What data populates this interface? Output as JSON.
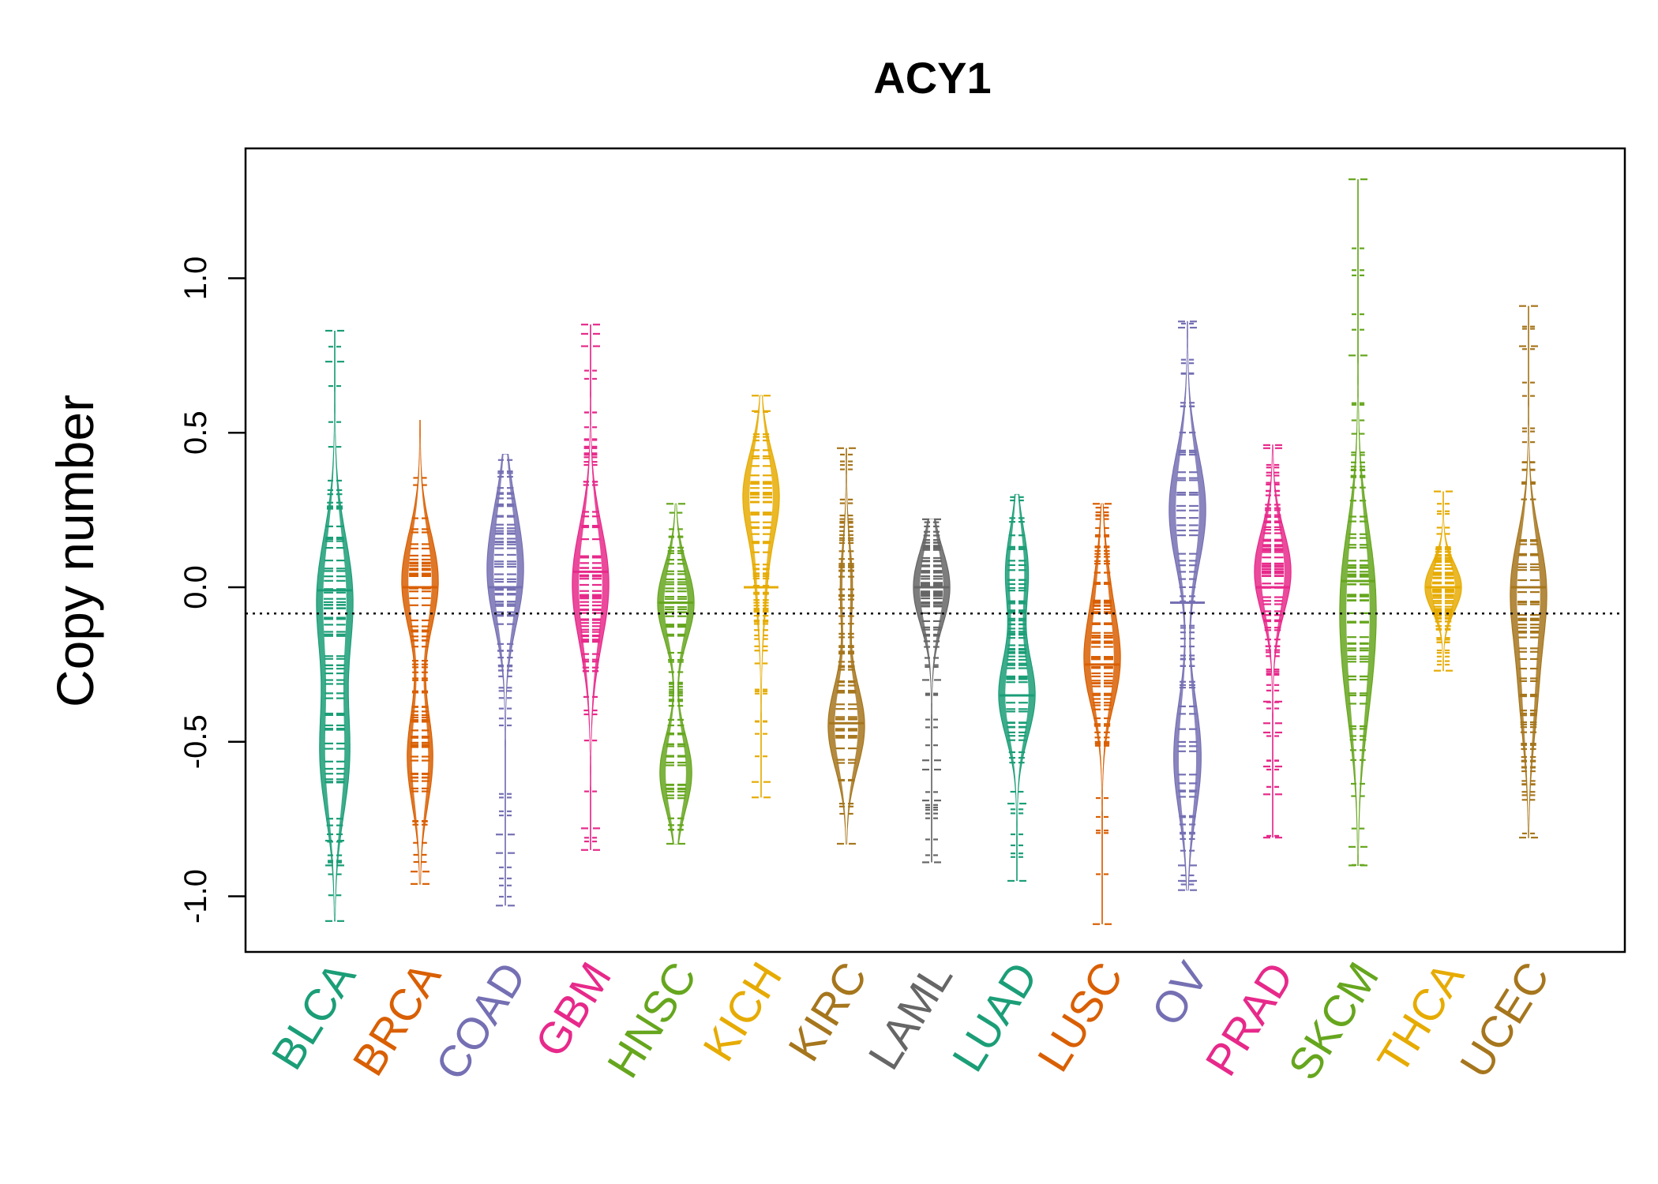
{
  "chart_data": {
    "type": "beanplot",
    "title": "ACY1",
    "xlabel": "",
    "ylabel": "Copy number",
    "ylim": [
      -1.18,
      1.42
    ],
    "yticks": [
      -1.0,
      -0.5,
      0.0,
      0.5,
      1.0
    ],
    "ytick_labels": [
      "-1.0",
      "-0.5",
      "0.0",
      "0.5",
      "1.0"
    ],
    "reference_line": -0.085,
    "reference_line_style": "dotted",
    "categories": [
      "BLCA",
      "BRCA",
      "COAD",
      "GBM",
      "HNSC",
      "KICH",
      "KIRC",
      "LAML",
      "LUAD",
      "LUSC",
      "OV",
      "PRAD",
      "SKCM",
      "THCA",
      "UCEC"
    ],
    "colors": [
      "#1B9E77",
      "#D95F02",
      "#7570B3",
      "#E7298A",
      "#66A61E",
      "#E6AB02",
      "#A6761D",
      "#666666",
      "#1B9E77",
      "#D95F02",
      "#7570B3",
      "#E7298A",
      "#66A61E",
      "#E6AB02",
      "#A6761D"
    ],
    "series": [
      {
        "name": "BLCA",
        "min": -1.08,
        "max": 0.83,
        "median": -0.01,
        "modes": [
          [
            -0.55,
            0.9
          ],
          [
            0.02,
            0.7
          ],
          [
            -0.12,
            0.5
          ]
        ],
        "outliers": [
          0.83,
          0.73,
          -0.82,
          -0.9,
          -1.08
        ]
      },
      {
        "name": "BRCA",
        "min": -0.96,
        "max": 0.54,
        "median": 0.0,
        "modes": [
          [
            0.02,
            1.0
          ],
          [
            -0.55,
            0.7
          ]
        ],
        "outliers": [
          -0.92,
          -0.96
        ]
      },
      {
        "name": "COAD",
        "min": -1.03,
        "max": 0.43,
        "median": 0.0,
        "modes": [
          [
            0.0,
            1.0
          ],
          [
            0.2,
            0.6
          ]
        ],
        "outliers": [
          -0.8,
          -0.86,
          -1.03
        ]
      },
      {
        "name": "GBM",
        "min": -0.85,
        "max": 0.85,
        "median": 0.05,
        "modes": [
          [
            0.05,
            1.0
          ],
          [
            -0.12,
            0.4
          ]
        ],
        "outliers": [
          0.85,
          0.82,
          0.78,
          -0.78,
          -0.85
        ]
      },
      {
        "name": "HNSC",
        "min": -0.83,
        "max": 0.27,
        "median": -0.05,
        "modes": [
          [
            -0.05,
            0.8
          ],
          [
            -0.6,
            0.7
          ]
        ],
        "outliers": [
          0.27,
          -0.83
        ]
      },
      {
        "name": "KICH",
        "min": -0.68,
        "max": 0.62,
        "median": 0.0,
        "modes": [
          [
            0.3,
            0.8
          ],
          [
            0.0,
            0.2
          ]
        ],
        "outliers": [
          0.62,
          0.57,
          -0.63,
          -0.68
        ]
      },
      {
        "name": "KIRC",
        "min": -0.83,
        "max": 0.45,
        "median": -0.44,
        "modes": [
          [
            -0.45,
            0.9
          ],
          [
            0.0,
            0.3
          ]
        ],
        "outliers": [
          0.45,
          -0.83
        ]
      },
      {
        "name": "LAML",
        "min": -0.89,
        "max": 0.22,
        "median": 0.0,
        "modes": [
          [
            0.0,
            1.0
          ]
        ],
        "outliers": [
          0.22,
          -0.3,
          -0.56,
          -0.59,
          -0.69,
          -0.89
        ]
      },
      {
        "name": "LUAD",
        "min": -0.95,
        "max": 0.3,
        "median": -0.35,
        "modes": [
          [
            -0.35,
            0.8
          ],
          [
            0.05,
            0.5
          ]
        ],
        "outliers": [
          -0.7,
          -0.95
        ]
      },
      {
        "name": "LUSC",
        "min": -1.09,
        "max": 0.27,
        "median": -0.25,
        "modes": [
          [
            -0.25,
            0.9
          ],
          [
            0.0,
            0.3
          ]
        ],
        "outliers": [
          0.27,
          -1.09
        ]
      },
      {
        "name": "OV",
        "min": -0.98,
        "max": 0.86,
        "median": -0.05,
        "modes": [
          [
            0.25,
            0.8
          ],
          [
            -0.55,
            0.6
          ]
        ],
        "outliers": [
          0.86,
          0.84,
          -0.9,
          -0.95,
          -0.98
        ]
      },
      {
        "name": "PRAD",
        "min": -0.81,
        "max": 0.46,
        "median": 0.0,
        "modes": [
          [
            0.05,
            1.0
          ]
        ],
        "outliers": [
          0.46,
          0.45,
          -0.37,
          -0.44,
          -0.47,
          -0.58,
          -0.67,
          -0.81
        ]
      },
      {
        "name": "SKCM",
        "min": -0.9,
        "max": 1.32,
        "median": 0.02,
        "modes": [
          [
            0.02,
            0.7
          ],
          [
            -0.3,
            0.5
          ]
        ],
        "outliers": [
          1.32,
          0.75,
          -0.84,
          -0.9
        ]
      },
      {
        "name": "THCA",
        "min": -0.27,
        "max": 0.31,
        "median": 0.0,
        "modes": [
          [
            0.0,
            1.3
          ]
        ],
        "outliers": [
          0.31,
          -0.27
        ]
      },
      {
        "name": "UCEC",
        "min": -0.81,
        "max": 0.91,
        "median": 0.0,
        "modes": [
          [
            0.0,
            0.9
          ],
          [
            -0.35,
            0.4
          ]
        ],
        "outliers": [
          0.91,
          0.78,
          -0.81
        ]
      }
    ],
    "grid": false,
    "legend": "none"
  }
}
